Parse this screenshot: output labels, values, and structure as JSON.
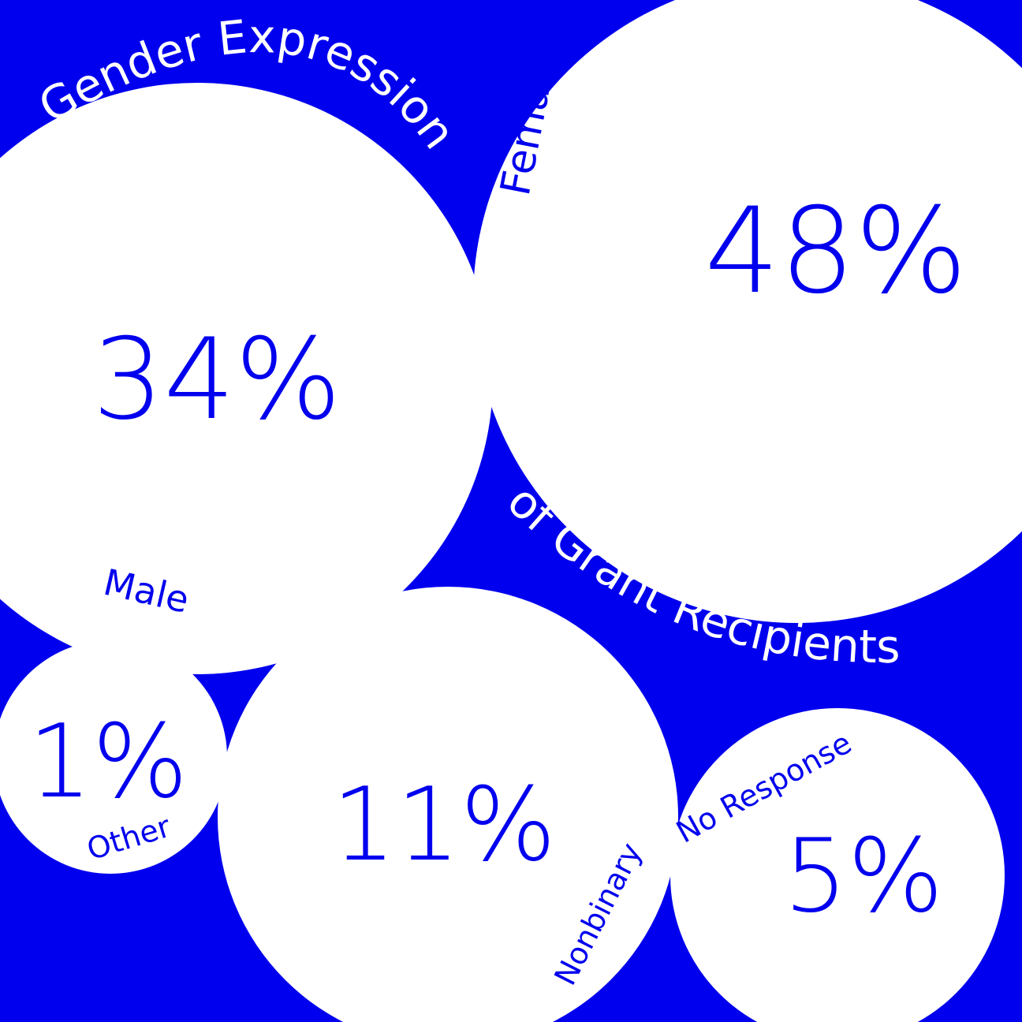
{
  "colors": {
    "background": "#0000ee",
    "bubble": "#ffffff",
    "bubble_text": "#0000ee",
    "title_text": "#ffffff"
  },
  "chart_data": {
    "type": "bubble",
    "title_line1": "Gender Expression",
    "title_line2": "of Grant Recipients",
    "unit": "%",
    "categories": [
      "Female",
      "Male",
      "Nonbinary",
      "No Response",
      "Other"
    ],
    "values": [
      48,
      34,
      11,
      5,
      1
    ],
    "value_labels": [
      "48%",
      "34%",
      "11%",
      "5%",
      "1%"
    ]
  }
}
